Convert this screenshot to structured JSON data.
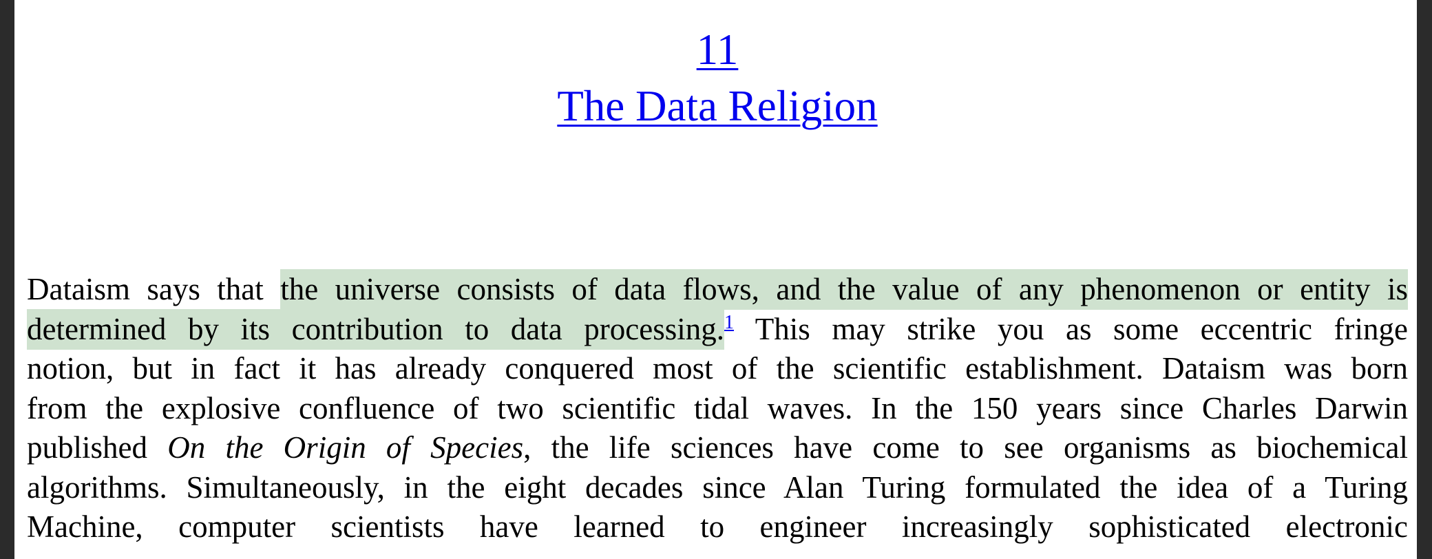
{
  "chapter": {
    "number": "11",
    "title": "The Data Religion"
  },
  "paragraph": {
    "l1_pre": "Dataism says that ",
    "l1_hl": "the universe consists of data flows, and the value of any phenomenon or entity is",
    "l2_hl": "determined by its contribution to data processing.",
    "footnote": "1",
    "l2_post": " This may strike you as some eccentric fringe",
    "l3": "notion, but in fact it has already conquered most of the scientific establishment. Dataism was born",
    "l4": "from the explosive confluence of two scientific tidal waves. In the 150 years since Charles Darwin",
    "l5_pre": "published ",
    "l5_italic": "On the Origin of Species",
    "l5_post": ", the life sciences have come to see organisms as biochemical",
    "l6": "algorithms. Simultaneously, in the eight decades since Alan Turing formulated the idea of a Turing",
    "l7": "Machine, computer scientists have learned to engineer increasingly sophisticated electronic"
  }
}
